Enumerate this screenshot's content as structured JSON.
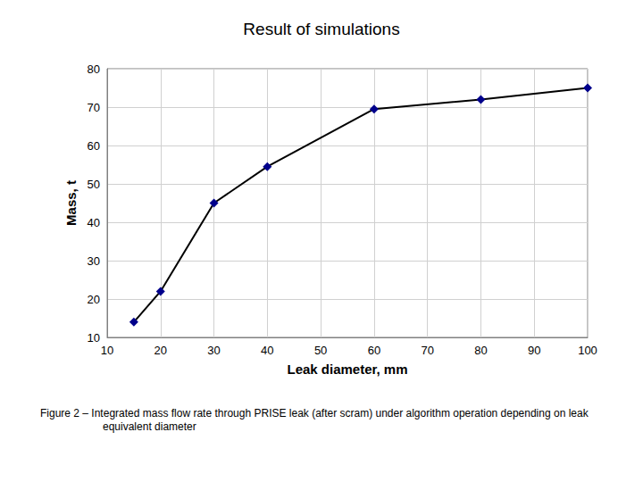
{
  "chart_data": {
    "type": "line",
    "title": "Result of simulations",
    "caption": "Figure 2 – Integrated mass flow rate through PRISE leak (after scram) under algorithm operation depending on leak equivalent diameter",
    "x_label": "Leak diameter, mm",
    "y_label": "Mass, t",
    "x": [
      15,
      20,
      30,
      40,
      60,
      80,
      100
    ],
    "values": [
      14,
      22,
      45,
      54.5,
      69.5,
      72,
      75
    ],
    "color": "#00008b",
    "marker": "diamond",
    "xlim": [
      10,
      100
    ],
    "xticks": [
      10,
      20,
      30,
      40,
      50,
      60,
      70,
      80,
      90,
      100
    ],
    "ylim": [
      10,
      80
    ],
    "yticks": [
      10,
      20,
      30,
      40,
      50,
      60,
      70,
      80
    ],
    "grid": true
  }
}
